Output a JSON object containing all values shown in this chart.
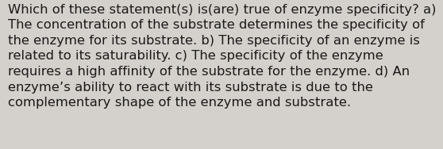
{
  "lines": [
    "Which of these statement(s) is(are) true of enzyme specificity? a)",
    "The concentration of the substrate determines the specificity of",
    "the enzyme for its substrate. b) The specificity of an enzyme is",
    "related to its saturability. c) The specificity of the enzyme",
    "requires a high affinity of the substrate for the enzyme. d) An",
    "enzyme’s ability to react with its substrate is due to the",
    "complementary shape of the enzyme and substrate."
  ],
  "background_color": "#d4d0cb",
  "text_color": "#1a1a1a",
  "font_size": 11.8,
  "font_family": "DejaVu Sans",
  "fig_width": 5.58,
  "fig_height": 1.88,
  "dpi": 100
}
